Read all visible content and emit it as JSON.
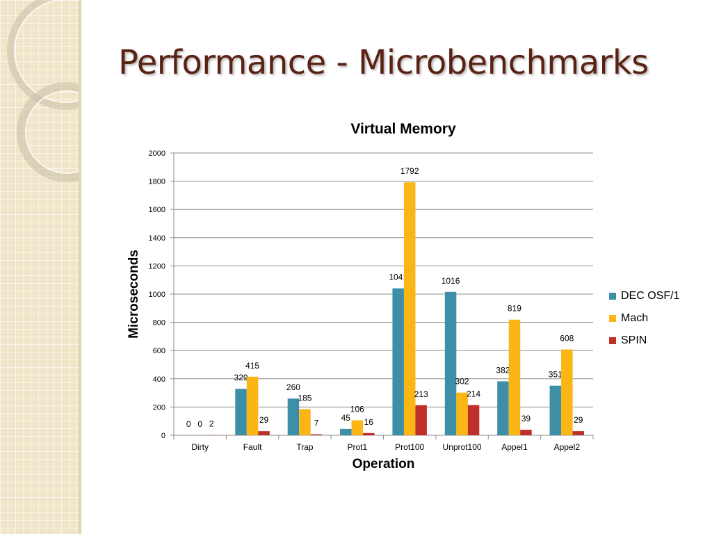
{
  "slide": {
    "title": "Performance - Microbenchmarks"
  },
  "chart_data": {
    "type": "bar",
    "title": "Virtual Memory",
    "xlabel": "Operation",
    "ylabel": "Microseconds",
    "ylim": [
      0,
      2000
    ],
    "yticks": [
      0,
      200,
      400,
      600,
      800,
      1000,
      1200,
      1400,
      1600,
      1800,
      2000
    ],
    "categories": [
      "Dirty",
      "Fault",
      "Trap",
      "Prot1",
      "Prot100",
      "Unprot100",
      "Appel1",
      "Appel2"
    ],
    "series": [
      {
        "name": "DEC OSF/1",
        "color": "#3d8fa8",
        "values": [
          0,
          329,
          260,
          45,
          1041,
          1016,
          382,
          351
        ]
      },
      {
        "name": "Mach",
        "color": "#fbb514",
        "values": [
          0,
          415,
          185,
          106,
          1792,
          302,
          819,
          608
        ]
      },
      {
        "name": "SPIN",
        "color": "#c0302b",
        "values": [
          2,
          29,
          7,
          16,
          213,
          214,
          39,
          29
        ]
      }
    ],
    "grid": true,
    "legend_position": "right",
    "data_labels": true
  }
}
